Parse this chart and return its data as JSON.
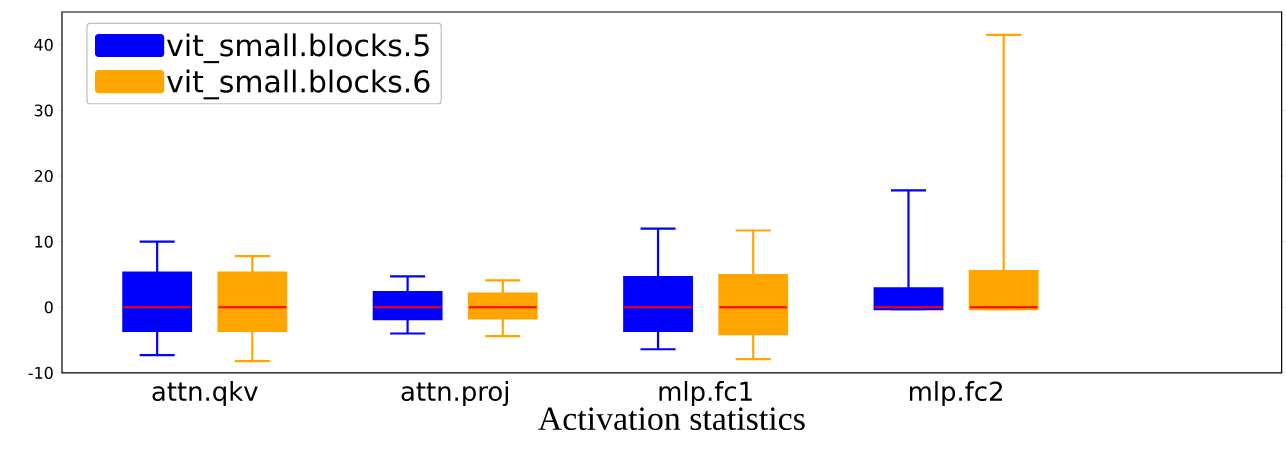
{
  "chart_data": {
    "type": "box",
    "xlabel": "Activation statistics",
    "categories": [
      "attn.qkv",
      "attn.proj",
      "mlp.fc1",
      "mlp.fc2"
    ],
    "ylim": [
      -10,
      45
    ],
    "yticks": [
      -10,
      0,
      10,
      20,
      30,
      40
    ],
    "legend": "top left",
    "grid": false,
    "series": [
      {
        "name": "vit_small.blocks.5",
        "color": "#0000ff",
        "boxes": [
          {
            "low": -7.3,
            "q1": -3.6,
            "median": 0,
            "q3": 5.3,
            "high": 10
          },
          {
            "low": -4.0,
            "q1": -1.8,
            "median": 0,
            "q3": 2.3,
            "high": 4.7
          },
          {
            "low": -6.4,
            "q1": -3.6,
            "median": 0,
            "q3": 4.6,
            "high": 12
          },
          {
            "low": -0.3,
            "q1": -0.3,
            "median": 0,
            "q3": 2.9,
            "high": 17.8
          }
        ]
      },
      {
        "name": "vit_small.blocks.6",
        "color": "#ffa500",
        "boxes": [
          {
            "low": -8.2,
            "q1": -3.6,
            "median": 0,
            "q3": 5.3,
            "high": 7.8
          },
          {
            "low": -4.4,
            "q1": -1.7,
            "median": 0,
            "q3": 2.1,
            "high": 4.1
          },
          {
            "low": -7.9,
            "q1": -4.1,
            "median": 0,
            "q3": 4.9,
            "high": 11.7
          },
          {
            "low": -0.3,
            "q1": -0.3,
            "median": 0,
            "q3": 5.5,
            "high": 41.5
          }
        ]
      }
    ]
  }
}
